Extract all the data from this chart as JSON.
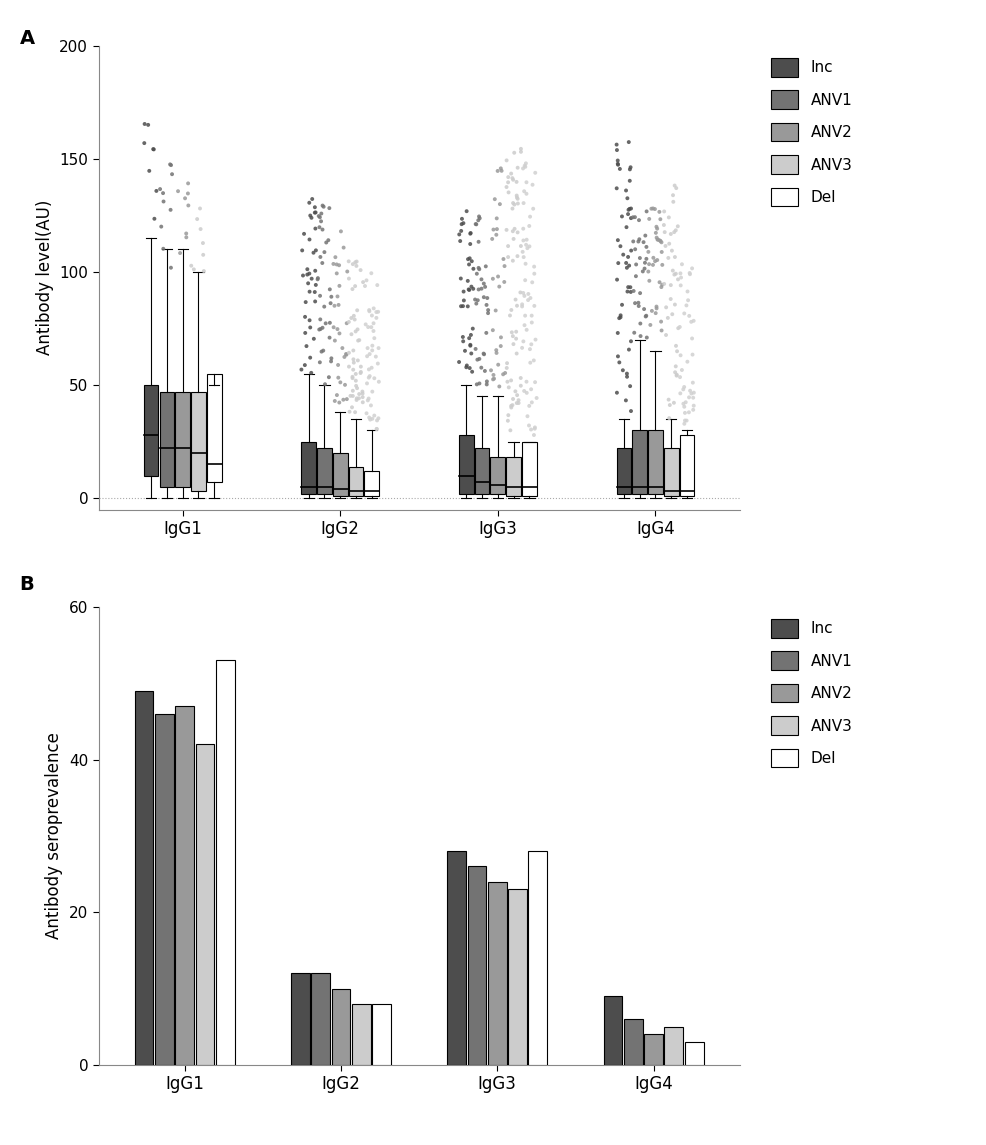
{
  "panel_A": {
    "ylabel": "Antibody level(AU)",
    "ylim": [
      -5,
      200
    ],
    "yticks": [
      0,
      50,
      100,
      150,
      200
    ],
    "groups": [
      "IgG1",
      "IgG2",
      "IgG3",
      "IgG4"
    ],
    "series": [
      "Inc",
      "ANV1",
      "ANV2",
      "ANV3",
      "Del"
    ],
    "colors": [
      "#4d4d4d",
      "#737373",
      "#999999",
      "#cccccc",
      "#ffffff"
    ],
    "box_data": {
      "IgG1": {
        "Inc": {
          "q1": 10,
          "median": 28,
          "q3": 50,
          "whislo": 0,
          "whishi": 115
        },
        "ANV1": {
          "q1": 5,
          "median": 22,
          "q3": 47,
          "whislo": 0,
          "whishi": 110
        },
        "ANV2": {
          "q1": 5,
          "median": 22,
          "q3": 47,
          "whislo": 0,
          "whishi": 110
        },
        "ANV3": {
          "q1": 3,
          "median": 20,
          "q3": 47,
          "whislo": 0,
          "whishi": 100
        },
        "Del": {
          "q1": 7,
          "median": 15,
          "q3": 55,
          "whislo": 0,
          "whishi": 50
        }
      },
      "IgG2": {
        "Inc": {
          "q1": 2,
          "median": 5,
          "q3": 25,
          "whislo": 0,
          "whishi": 55
        },
        "ANV1": {
          "q1": 2,
          "median": 5,
          "q3": 22,
          "whislo": 0,
          "whishi": 50
        },
        "ANV2": {
          "q1": 1,
          "median": 4,
          "q3": 20,
          "whislo": 0,
          "whishi": 38
        },
        "ANV3": {
          "q1": 1,
          "median": 3,
          "q3": 14,
          "whislo": 0,
          "whishi": 35
        },
        "Del": {
          "q1": 1,
          "median": 3,
          "q3": 12,
          "whislo": 0,
          "whishi": 30
        }
      },
      "IgG3": {
        "Inc": {
          "q1": 2,
          "median": 10,
          "q3": 28,
          "whislo": 0,
          "whishi": 50
        },
        "ANV1": {
          "q1": 2,
          "median": 7,
          "q3": 22,
          "whislo": 0,
          "whishi": 45
        },
        "ANV2": {
          "q1": 2,
          "median": 6,
          "q3": 18,
          "whislo": 0,
          "whishi": 45
        },
        "ANV3": {
          "q1": 1,
          "median": 5,
          "q3": 18,
          "whislo": 0,
          "whishi": 25
        },
        "Del": {
          "q1": 1,
          "median": 5,
          "q3": 25,
          "whislo": 0,
          "whishi": 25
        }
      },
      "IgG4": {
        "Inc": {
          "q1": 2,
          "median": 5,
          "q3": 22,
          "whislo": 0,
          "whishi": 35
        },
        "ANV1": {
          "q1": 2,
          "median": 5,
          "q3": 30,
          "whislo": 0,
          "whishi": 70
        },
        "ANV2": {
          "q1": 2,
          "median": 5,
          "q3": 30,
          "whislo": 0,
          "whishi": 65
        },
        "ANV3": {
          "q1": 1,
          "median": 3,
          "q3": 22,
          "whislo": 0,
          "whishi": 35
        },
        "Del": {
          "q1": 1,
          "median": 3,
          "q3": 28,
          "whislo": 0,
          "whishi": 30
        }
      }
    },
    "scatter_data": {
      "IgG1": {
        "Inc": {
          "n": 8,
          "ymin": 110,
          "ymax": 167
        },
        "ANV1": {
          "n": 10,
          "ymin": 100,
          "ymax": 153
        },
        "ANV2": {
          "n": 8,
          "ymin": 100,
          "ymax": 140
        },
        "ANV3": {
          "n": 8,
          "ymin": 100,
          "ymax": 130
        },
        "Del": {
          "n": 0,
          "ymin": 0,
          "ymax": 0
        }
      },
      "IgG2": {
        "Inc": {
          "n": 35,
          "ymin": 55,
          "ymax": 135
        },
        "ANV1": {
          "n": 35,
          "ymin": 50,
          "ymax": 130
        },
        "ANV2": {
          "n": 30,
          "ymin": 38,
          "ymax": 125
        },
        "ANV3": {
          "n": 50,
          "ymin": 35,
          "ymax": 105
        },
        "Del": {
          "n": 45,
          "ymin": 30,
          "ymax": 100
        }
      },
      "IgG3": {
        "Inc": {
          "n": 40,
          "ymin": 50,
          "ymax": 130
        },
        "ANV1": {
          "n": 35,
          "ymin": 45,
          "ymax": 125
        },
        "ANV2": {
          "n": 30,
          "ymin": 45,
          "ymax": 155
        },
        "ANV3": {
          "n": 60,
          "ymin": 25,
          "ymax": 155
        },
        "Del": {
          "n": 60,
          "ymin": 25,
          "ymax": 150
        }
      },
      "IgG4": {
        "Inc": {
          "n": 50,
          "ymin": 35,
          "ymax": 165
        },
        "ANV1": {
          "n": 30,
          "ymin": 70,
          "ymax": 130
        },
        "ANV2": {
          "n": 35,
          "ymin": 65,
          "ymax": 135
        },
        "ANV3": {
          "n": 40,
          "ymin": 35,
          "ymax": 140
        },
        "Del": {
          "n": 40,
          "ymin": 30,
          "ymax": 105
        }
      }
    }
  },
  "panel_B": {
    "ylabel": "Antibody seroprevalence",
    "ylim": [
      0,
      60
    ],
    "yticks": [
      0,
      20,
      40,
      60
    ],
    "groups": [
      "IgG1",
      "IgG2",
      "IgG3",
      "IgG4"
    ],
    "series": [
      "Inc",
      "ANV1",
      "ANV2",
      "ANV3",
      "Del"
    ],
    "colors": [
      "#4d4d4d",
      "#737373",
      "#999999",
      "#cccccc",
      "#ffffff"
    ],
    "bar_values": {
      "IgG1": [
        49,
        46,
        47,
        42,
        53
      ],
      "IgG2": [
        12,
        12,
        10,
        8,
        8
      ],
      "IgG3": [
        28,
        26,
        24,
        23,
        28
      ],
      "IgG4": [
        9,
        6,
        4,
        5,
        3
      ]
    }
  },
  "legend_labels": [
    "Inc",
    "ANV1",
    "ANV2",
    "ANV3",
    "Del"
  ],
  "colors": [
    "#4d4d4d",
    "#737373",
    "#999999",
    "#cccccc",
    "#ffffff"
  ]
}
